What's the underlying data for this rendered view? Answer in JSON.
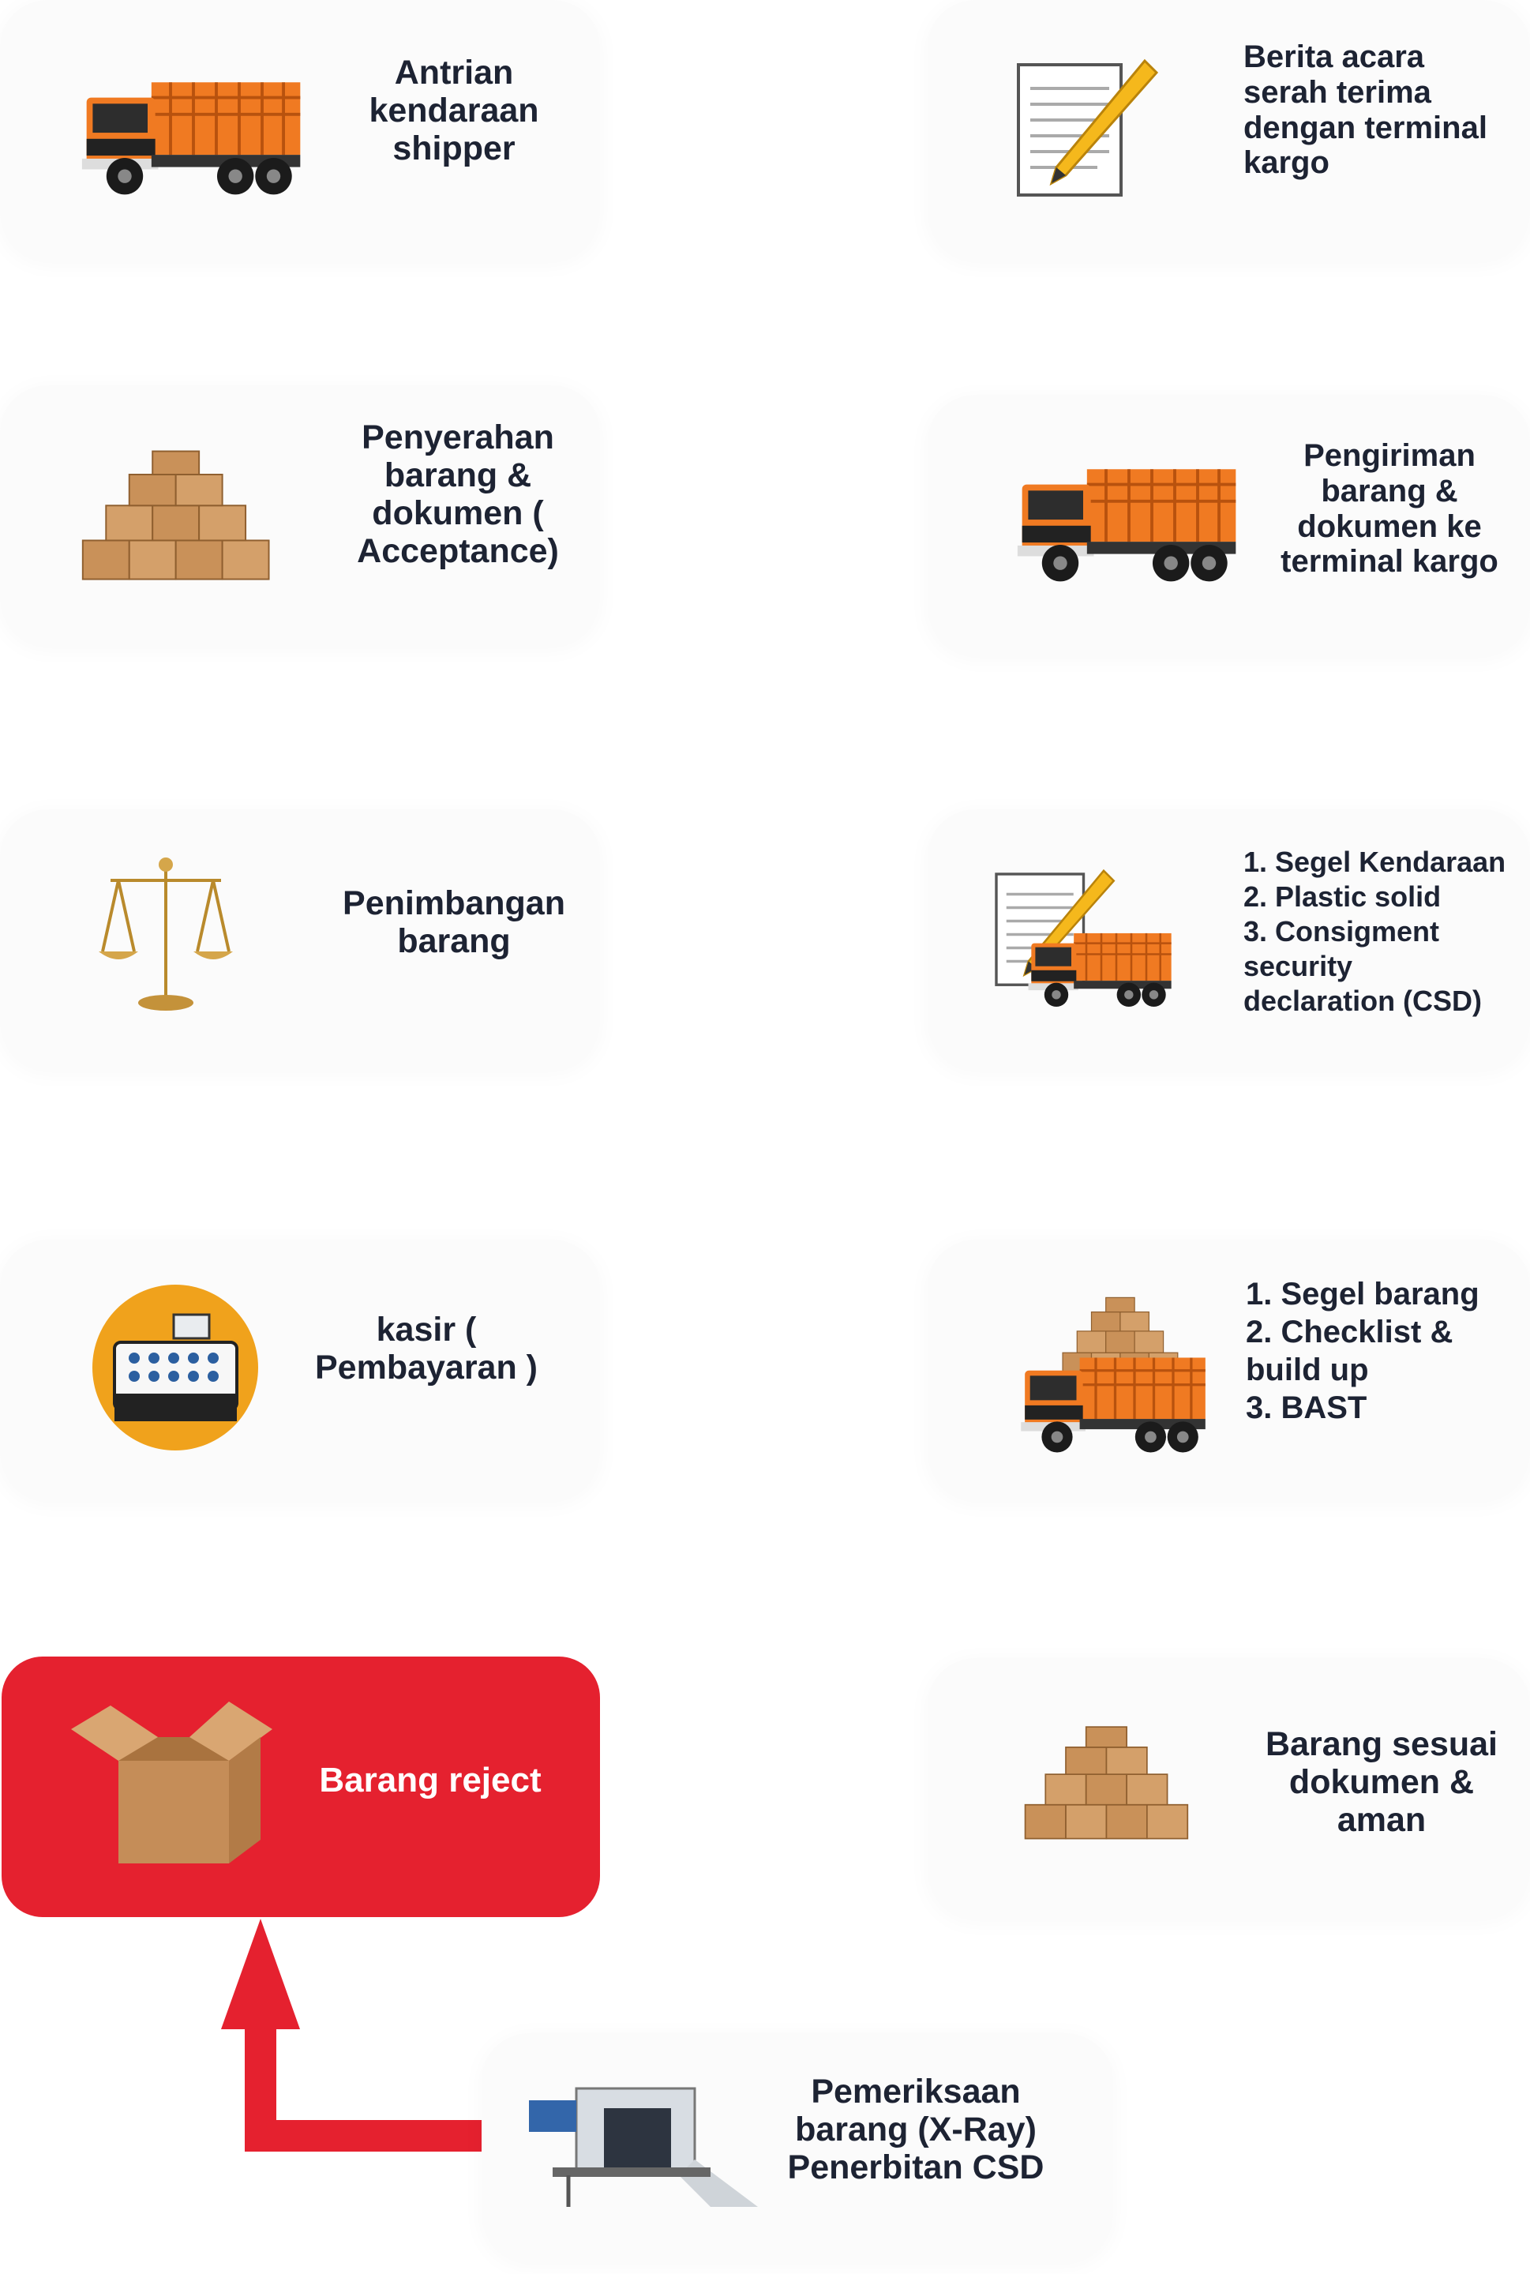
{
  "steps_left": [
    {
      "lines": [
        "Antrian",
        "kendaraan",
        "shipper"
      ],
      "icon": "truck-icon"
    },
    {
      "lines": [
        "Penyerahan",
        "barang &",
        "dokumen (",
        "Acceptance)"
      ],
      "icon": "boxes-icon"
    },
    {
      "lines": [
        "Penimbangan",
        "barang"
      ],
      "icon": "scale-icon"
    },
    {
      "lines": [
        "kasir (",
        "Pembayaran )"
      ],
      "icon": "cash-register-icon"
    }
  ],
  "steps_right": [
    {
      "lines": [
        "Berita acara",
        "serah terima",
        "dengan terminal",
        "kargo"
      ],
      "icon": "document-pencil-icon"
    },
    {
      "lines": [
        "Pengiriman",
        "barang &",
        "dokumen ke",
        "terminal kargo"
      ],
      "icon": "truck-icon"
    },
    {
      "lines": [
        "1. Segel Kendaraan",
        "2. Plastic solid",
        "3. Consigment",
        "security",
        "declaration (CSD)"
      ],
      "icon": "document-truck-icon"
    },
    {
      "lines": [
        "1. Segel barang",
        "2. Checklist &",
        "build up",
        "3. BAST"
      ],
      "icon": "loaded-truck-icon"
    },
    {
      "lines": [
        "Barang sesuai",
        "dokumen &",
        "aman"
      ],
      "icon": "boxes-icon"
    }
  ],
  "reject": {
    "label": "Barang reject",
    "icon": "open-box-icon"
  },
  "xray": {
    "lines": [
      "Pemeriksaan",
      "barang (X-Ray)",
      "Penerbitan CSD"
    ],
    "icon": "xray-scanner-icon"
  },
  "colors": {
    "reject": "#e5212f",
    "truck": "#f07a22",
    "box": "#c99159",
    "text": "#1d2333"
  }
}
